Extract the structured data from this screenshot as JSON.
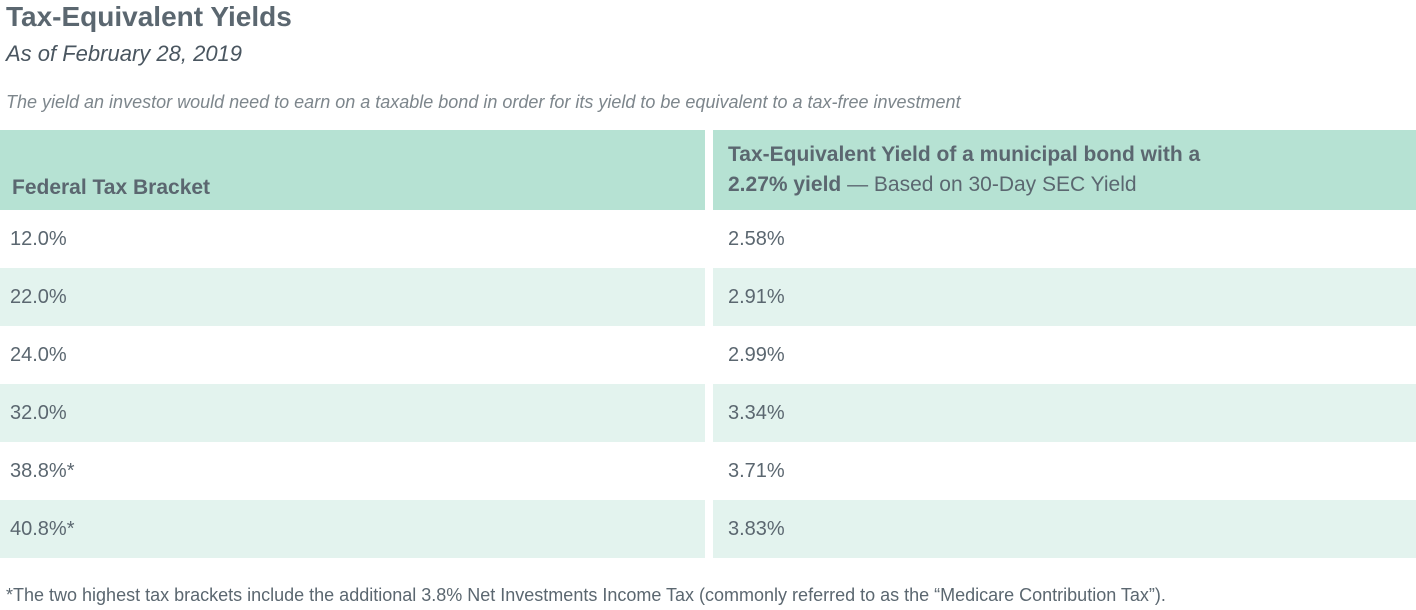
{
  "title": "Tax-Equivalent Yields",
  "subtitle": "As of February 28, 2019",
  "description": "The yield an investor would need to earn on a taxable bond in order for its yield to be equivalent to a tax-free investment",
  "table": {
    "header_left": "Federal Tax Bracket",
    "header_right_line1": "Tax-Equivalent Yield of a municipal bond with a",
    "header_right_bold": "2.27% yield",
    "header_right_normal": " — Based on 30-Day SEC Yield",
    "rows": [
      {
        "bracket": "12.0%",
        "yield": "2.58%"
      },
      {
        "bracket": "22.0%",
        "yield": "2.91%"
      },
      {
        "bracket": "24.0%",
        "yield": "2.99%"
      },
      {
        "bracket": "32.0%",
        "yield": "3.34%"
      },
      {
        "bracket": "38.8%*",
        "yield": "3.71%"
      },
      {
        "bracket": "40.8%*",
        "yield": "3.83%"
      }
    ]
  },
  "footnote": "*The two highest tax brackets include the additional 3.8% Net Investments Income Tax (commonly referred to as the “Medicare Contribution Tax”).",
  "colors": {
    "header_bg": "#b6e2d3",
    "alt_row_bg": "#e3f3ee",
    "text": "#5b6770"
  }
}
